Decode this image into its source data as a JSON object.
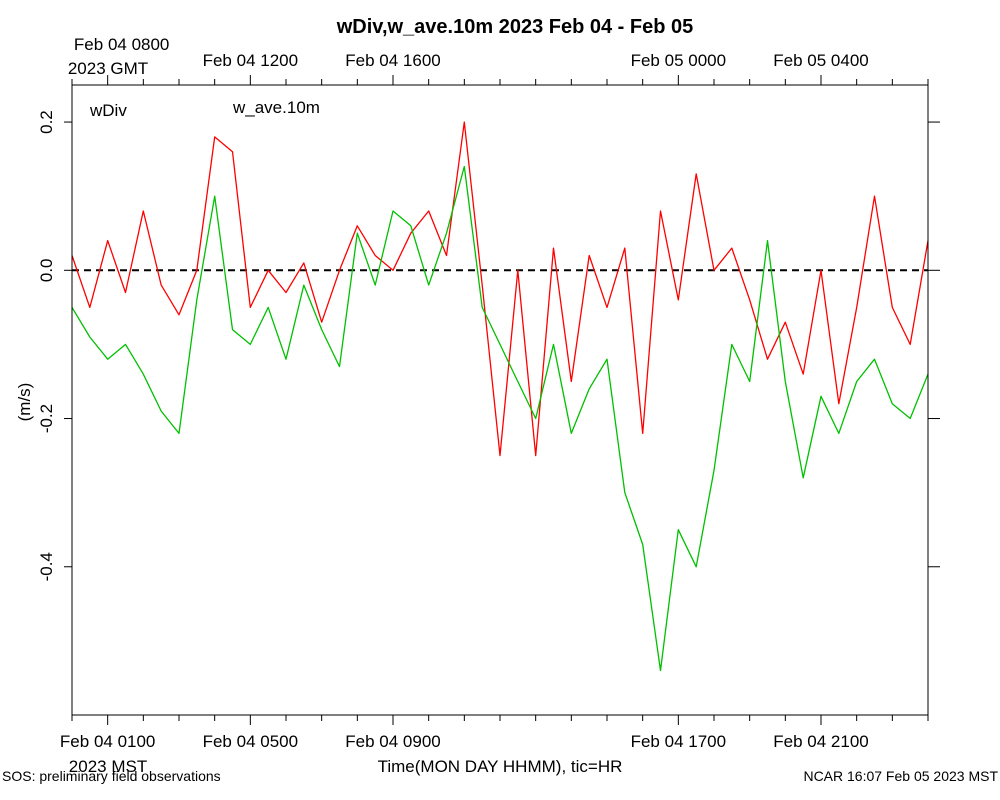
{
  "chart_data": {
    "type": "line",
    "title": "wDiv,w_ave.10m 2023 Feb 04 - Feb 05",
    "xlabel": "Time(MON DAY HHMM), tic=HR",
    "ylabel": "(m/s)",
    "x_unit": "hours since Feb 04 0000 MST",
    "xlim": [
      0.0,
      24.0
    ],
    "ylim": [
      -0.6,
      0.25
    ],
    "yticks": [
      -0.4,
      -0.2,
      0.0,
      0.2
    ],
    "ytick_labels": [
      "-0.4",
      "-0.2",
      "0.0",
      "0.2"
    ],
    "grid": false,
    "zero_line": true,
    "top_axis": {
      "ticks": [
        1,
        5,
        9,
        17,
        21
      ],
      "labels": [
        "Feb 04 0800",
        "Feb 04 1200",
        "Feb 04 1600",
        "Feb 05 0000",
        "Feb 05 0400"
      ],
      "zone_label": "2023 GMT"
    },
    "bottom_axis": {
      "ticks": [
        1,
        5,
        9,
        17,
        21
      ],
      "labels": [
        "Feb 04 0100",
        "Feb 04 0500",
        "Feb 04 0900",
        "Feb 04 1700",
        "Feb 04 2100"
      ],
      "zone_label": "2023 MST"
    },
    "series": [
      {
        "name": "wDiv",
        "color": "#ff0000",
        "x": [
          0.0,
          0.5,
          1.0,
          1.5,
          2.0,
          2.5,
          3.0,
          3.5,
          4.0,
          4.5,
          5.0,
          5.5,
          6.0,
          6.5,
          7.0,
          7.5,
          8.0,
          8.5,
          9.0,
          9.5,
          10.0,
          10.5,
          11.0,
          11.5,
          12.0,
          12.5,
          13.0,
          13.5,
          14.0,
          14.5,
          15.0,
          15.5,
          16.0,
          16.5,
          17.0,
          17.5,
          18.0,
          18.5,
          19.0,
          19.5,
          20.0,
          20.5,
          21.0,
          21.5,
          22.0,
          22.5,
          23.0,
          23.5,
          24.0
        ],
        "values": [
          0.02,
          -0.05,
          0.04,
          -0.03,
          0.08,
          -0.02,
          -0.06,
          0.0,
          0.18,
          0.16,
          -0.05,
          0.0,
          -0.03,
          0.01,
          -0.07,
          0.0,
          0.06,
          0.02,
          0.0,
          0.05,
          0.08,
          0.02,
          0.2,
          -0.02,
          -0.25,
          0.0,
          -0.25,
          0.03,
          -0.15,
          0.02,
          -0.05,
          0.03,
          -0.22,
          0.08,
          -0.04,
          0.13,
          0.0,
          0.03,
          -0.04,
          -0.12,
          -0.07,
          -0.14,
          0.0,
          -0.18,
          -0.05,
          0.1,
          -0.05,
          -0.1,
          0.04
        ]
      },
      {
        "name": "w_ave.10m",
        "color": "#00c000",
        "x": [
          0.0,
          0.5,
          1.0,
          1.5,
          2.0,
          2.5,
          3.0,
          3.5,
          4.0,
          4.5,
          5.0,
          5.5,
          6.0,
          6.5,
          7.0,
          7.5,
          8.0,
          8.5,
          9.0,
          9.5,
          10.0,
          10.5,
          11.0,
          11.5,
          12.0,
          12.5,
          13.0,
          13.5,
          14.0,
          14.5,
          15.0,
          15.5,
          16.0,
          16.5,
          17.0,
          17.5,
          18.0,
          18.5,
          19.0,
          19.5,
          20.0,
          20.5,
          21.0,
          21.5,
          22.0,
          22.5,
          23.0,
          23.5,
          24.0
        ],
        "values": [
          -0.05,
          -0.09,
          -0.12,
          -0.1,
          -0.14,
          -0.19,
          -0.22,
          -0.04,
          0.1,
          -0.08,
          -0.1,
          -0.05,
          -0.12,
          -0.02,
          -0.08,
          -0.13,
          0.05,
          -0.02,
          0.08,
          0.06,
          -0.02,
          0.05,
          0.14,
          -0.05,
          -0.1,
          -0.15,
          -0.2,
          -0.1,
          -0.22,
          -0.16,
          -0.12,
          -0.3,
          -0.37,
          -0.54,
          -0.35,
          -0.4,
          -0.27,
          -0.1,
          -0.15,
          0.04,
          -0.15,
          -0.28,
          -0.17,
          -0.22,
          -0.15,
          -0.12,
          -0.18,
          -0.2,
          -0.14
        ]
      }
    ],
    "legend": {
      "placement": "top-left",
      "entries": [
        "wDiv",
        "w_ave.10m"
      ]
    }
  },
  "footer": {
    "left": "SOS: preliminary field observations",
    "right": "NCAR 16:07 Feb 05 2023 MST"
  }
}
